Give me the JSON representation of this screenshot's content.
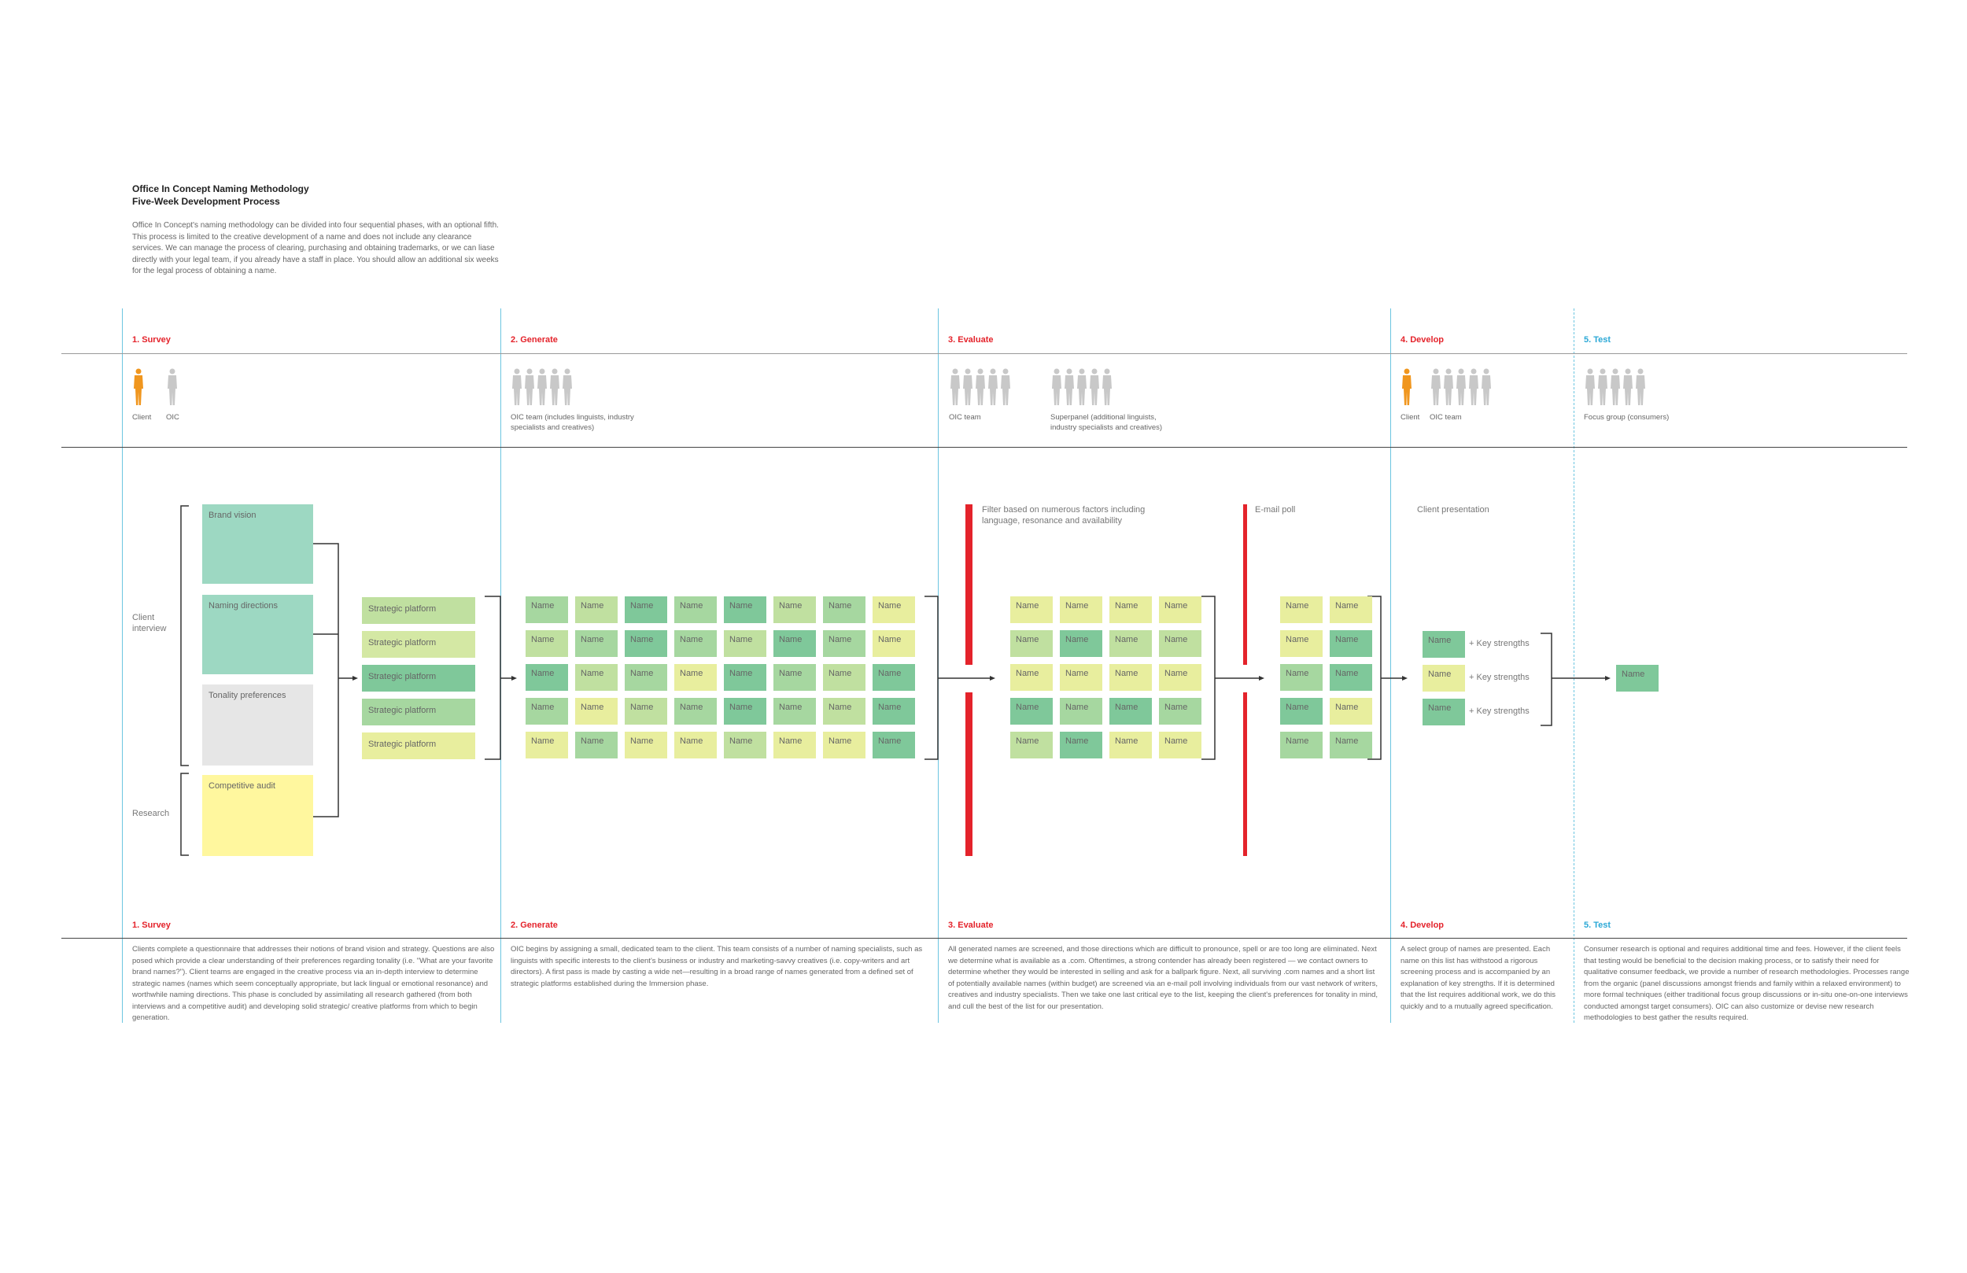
{
  "header": {
    "title_line1": "Office In Concept Naming Methodology",
    "title_line2": "Five-Week Development Process",
    "intro": "Office In Concept's naming methodology can be divided into four sequential phases, with an optional fifth. This process is limited to the creative development of a name and does not include any clearance services. We can manage the process of clearing, purchasing and obtaining trademarks, or we can liase directly with your legal team, if you already have a staff in place. You should allow an additional six weeks for the legal process of obtaining a name."
  },
  "phases": {
    "survey": "1. Survey",
    "generate": "2. Generate",
    "evaluate": "3. Evaluate",
    "develop": "4. Develop",
    "test": "5. Test"
  },
  "people": {
    "client": "Client",
    "oic": "OIC",
    "oic_team_generate": "OIC team (includes linguists, industry specialists and creatives)",
    "oic_team": "OIC team",
    "superpanel": "Superpanel (additional linguists, industry specialists and creatives)",
    "client_develop": "Client",
    "oic_team_develop": "OIC team",
    "focus_group": "Focus group (consumers)"
  },
  "survey": {
    "client_interview": "Client interview",
    "research": "Research",
    "brand_vision": "Brand vision",
    "naming_directions": "Naming directions",
    "tonality": "Tonality preferences",
    "competitive_audit": "Competitive audit",
    "strategic_platforms": [
      "Strategic platform",
      "Strategic platform",
      "Strategic platform",
      "Strategic platform",
      "Strategic platform"
    ]
  },
  "name_label": "Name",
  "evaluate": {
    "filter": "Filter based on numerous factors including language, resonance and availability",
    "email_poll": "E-mail poll"
  },
  "develop": {
    "client_presentation": "Client presentation",
    "key_strengths": [
      "+ Key strengths",
      "+ Key strengths",
      "+ Key strengths"
    ]
  },
  "colors": {
    "dark_green": "#7fc89a",
    "mid_green": "#a6d7a0",
    "light_green": "#c0e0a0",
    "yellow": "#e8ee9e",
    "teal": "#9dd8c2",
    "gray_box": "#e6e6e6",
    "pale_yellow": "#fff79e",
    "red": "#e4232b",
    "cyan": "#6cc5e0",
    "orange": "#f0961e"
  },
  "descriptions": {
    "survey": "Clients complete a questionnaire that addresses their notions of brand vision and strategy. Questions are also posed which provide a clear understanding of their preferences regarding tonality (i.e. \"What are your favorite brand names?\"). Client teams are engaged in the creative process via an in-depth interview to determine strategic names (names which seem conceptually appropriate, but lack lingual or emotional resonance) and worthwhile naming directions. This phase is concluded by assimilating all research gathered (from both interviews and a competitive audit) and developing solid strategic/ creative platforms from which to begin generation.",
    "generate": "OIC begins by assigning a small, dedicated team to the client. This team consists of a number of naming specialists, such as linguists with specific interests to the client's business or industry and marketing-savvy creatives (i.e. copy-writers and art directors). A first pass is made by casting a wide net—resulting in a broad range of names generated from a defined set of strategic platforms established during the Immersion phase.",
    "evaluate": "All generated names are screened, and those directions which are difficult to pronounce, spell or are too long are eliminated. Next we determine what is available as a .com. Oftentimes, a strong contender has already been registered — we contact owners to determine whether they would be interested in selling and ask for a ballpark figure. Next, all surviving .com names and a short list of potentially available names (within budget) are screened via an e-mail poll involving individuals from our vast network of writers, creatives and industry specialists. Then we take one last critical eye to the list, keeping the client's preferences for tonality in mind, and cull the best of the list for our presentation.",
    "develop": "A select group of names are presented. Each name on this list has withstood a rigorous screening process and is accompanied by an explanation of key strengths. If it is determined that the list requires additional work, we do this quickly and to a mutually agreed specification.",
    "test": "Consumer research is optional and requires additional time and fees. However, if the client feels that testing would be beneficial to the decision making process, or to satisfy their need for qualitative consumer feedback, we provide a number of research methodologies. Processes range from the organic (panel discussions amongst friends and family within a relaxed environment) to more formal techniques (either traditional focus group discussions or in-situ one-on-one interviews conducted amongst target consumers). OIC can also customize or devise new research methodologies to best gather the results required."
  }
}
